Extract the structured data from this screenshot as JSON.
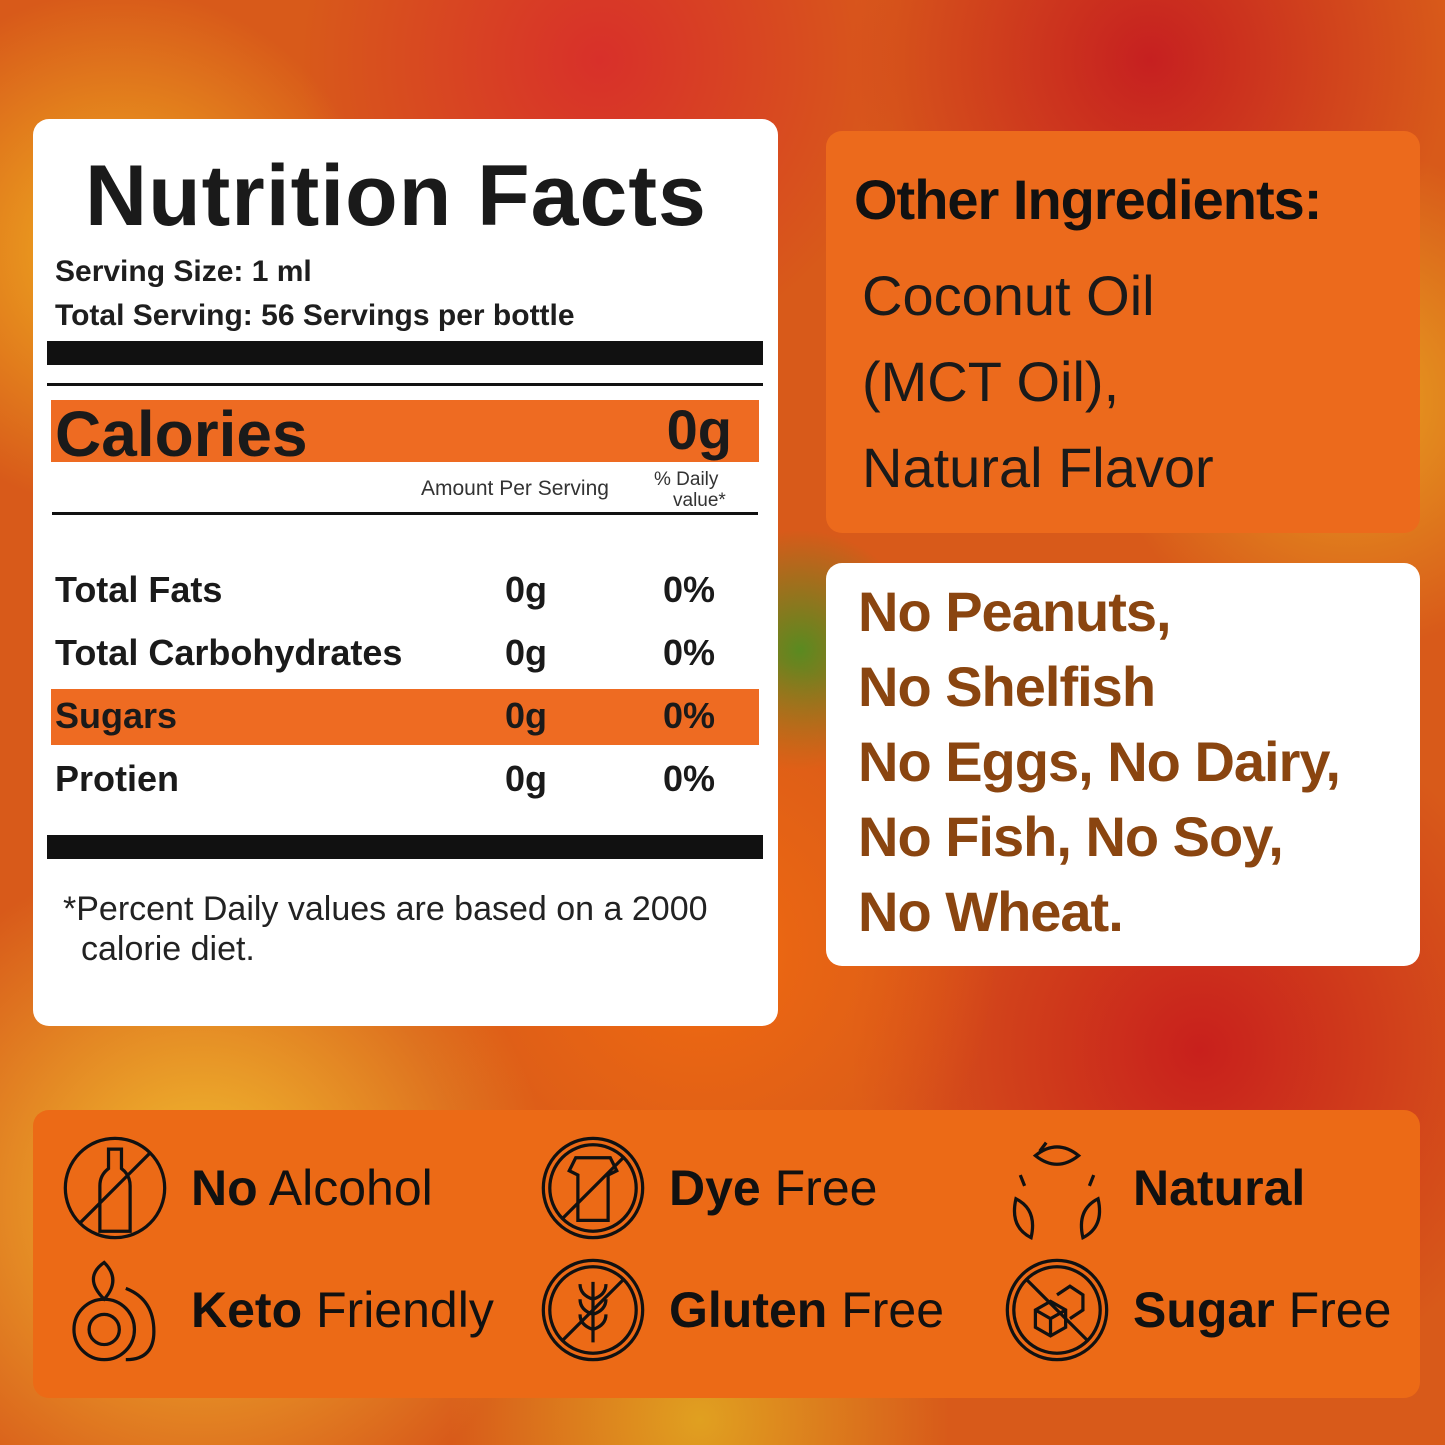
{
  "nutrition": {
    "title": "Nutrition Facts",
    "serving_size": "Serving Size: 1 ml",
    "total_serving": "Total Serving: 56 Servings per bottle",
    "calories_label": "Calories",
    "calories_value": "0g",
    "amount_header": "Amount Per Serving",
    "daily_header_1": "% Daily",
    "daily_header_2": "value*",
    "rows": [
      {
        "name": "Total Fats",
        "amount": "0g",
        "dv": "0%",
        "highlight": false
      },
      {
        "name": "Total Carbohydrates",
        "amount": "0g",
        "dv": "0%",
        "highlight": false
      },
      {
        "name": "Sugars",
        "amount": "0g",
        "dv": "0%",
        "highlight": true
      },
      {
        "name": "Protien",
        "amount": "0g",
        "dv": "0%",
        "highlight": false
      }
    ],
    "footnote": "*Percent Daily values are based on a 2000 calorie diet."
  },
  "other_ingredients": {
    "title": "Other Ingredients:",
    "items": [
      "Coconut Oil",
      "(MCT Oil),",
      "Natural Flavor"
    ]
  },
  "allergens": [
    "No Peanuts,",
    "No Shelfish",
    "No Eggs, No Dairy,",
    "No Fish, No Soy,",
    "No Wheat."
  ],
  "badges": [
    {
      "bold": "No",
      "light": " Alcohol",
      "icon": "no-alcohol-icon"
    },
    {
      "bold": "Dye",
      "light": " Free",
      "icon": "dye-free-icon"
    },
    {
      "bold": "Natural",
      "light": "",
      "icon": "natural-leaves-icon"
    },
    {
      "bold": "Keto",
      "light": " Friendly",
      "icon": "avocado-icon"
    },
    {
      "bold": "Gluten",
      "light": " Free",
      "icon": "gluten-free-icon"
    },
    {
      "bold": "Sugar",
      "light": " Free",
      "icon": "sugar-free-icon"
    }
  ],
  "colors": {
    "accent_orange": "#ec6a1c",
    "allergen_brown": "#8a4510"
  }
}
